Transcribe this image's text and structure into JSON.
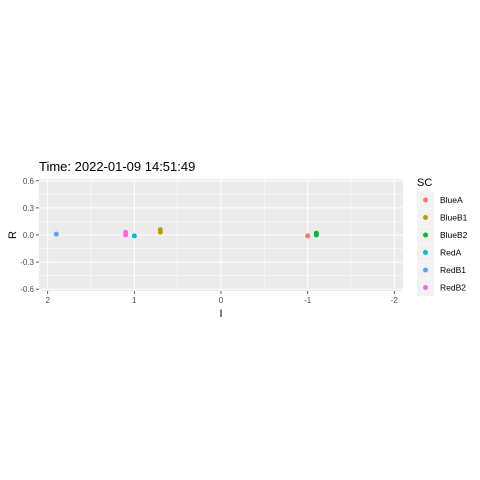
{
  "chart_data": {
    "type": "scatter",
    "title": "Time: 2022-01-09 14:51:49",
    "xlabel": "I",
    "ylabel": "R",
    "x_reversed": true,
    "xlim": [
      2.1,
      -2.1
    ],
    "ylim": [
      -0.62,
      0.62
    ],
    "x_ticks": [
      2,
      1,
      0,
      -1,
      -2
    ],
    "x_tick_labels": [
      "2",
      "1",
      "0",
      "-1",
      "-2"
    ],
    "y_ticks": [
      0.6,
      0.3,
      0.0,
      -0.3,
      -0.6
    ],
    "y_tick_labels": [
      "0.6",
      "0.3",
      "0.0",
      "-0.3",
      "-0.6"
    ],
    "grid": true,
    "legend_title": "SC",
    "legend_position": "right",
    "series": [
      {
        "name": "BlueA",
        "color": "#F8766D",
        "points": [
          {
            "x": -1.0,
            "y": -0.01
          }
        ]
      },
      {
        "name": "BlueB1",
        "color": "#B79F00",
        "points": [
          {
            "x": 0.7,
            "y": 0.06
          },
          {
            "x": 0.7,
            "y": 0.03
          }
        ]
      },
      {
        "name": "BlueB2",
        "color": "#00BA38",
        "points": [
          {
            "x": -1.1,
            "y": 0.02
          },
          {
            "x": -1.1,
            "y": 0.0
          }
        ]
      },
      {
        "name": "RedA",
        "color": "#00BFC4",
        "points": [
          {
            "x": 1.0,
            "y": -0.01
          }
        ]
      },
      {
        "name": "RedB1",
        "color": "#619CFF",
        "points": [
          {
            "x": 1.9,
            "y": 0.01
          }
        ]
      },
      {
        "name": "RedB2",
        "color": "#F564E3",
        "points": [
          {
            "x": 1.1,
            "y": 0.03
          },
          {
            "x": 1.1,
            "y": 0.0
          }
        ]
      }
    ]
  }
}
